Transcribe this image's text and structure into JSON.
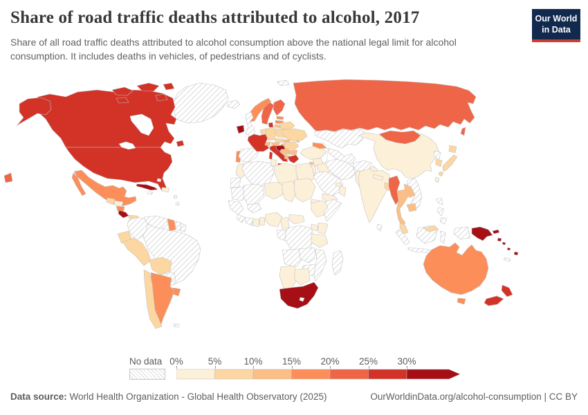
{
  "header": {
    "title": "Share of road traffic deaths attributed to alcohol, 2017",
    "subtitle": "Share of all road traffic deaths attributed to alcohol consumption above the national legal limit for alcohol consumption. It includes deaths in vehicles, of pedestrians and of cyclists.",
    "logo": {
      "line1": "Our World",
      "line2": "in Data",
      "bg_color": "#12294e",
      "bar_color": "#cf3c32"
    }
  },
  "legend": {
    "no_data_label": "No data",
    "tick_labels": [
      "0%",
      "5%",
      "10%",
      "15%",
      "20%",
      "25%",
      "30%"
    ],
    "hatch_line_color": "#dcdcdc",
    "border_color": "#c2c2c2"
  },
  "footer": {
    "source_label": "Data source:",
    "source_text": " World Health Organization - Global Health Observatory (2025)",
    "right_text": "OurWorldinData.org/alcohol-consumption | CC BY"
  },
  "chart_data": {
    "type": "choropleth",
    "title": "Share of road traffic deaths attributed to alcohol, 2017",
    "year": 2017,
    "unit": "% of road traffic deaths",
    "legend_position": "bottom",
    "bands": [
      {
        "key": "b0",
        "label": "0%-5%",
        "color": "#fdf0d9"
      },
      {
        "key": "b1",
        "label": "5%-10%",
        "color": "#fdd7a1"
      },
      {
        "key": "b2",
        "label": "10%-15%",
        "color": "#fcbe85"
      },
      {
        "key": "b3",
        "label": "15%-20%",
        "color": "#fc8e59"
      },
      {
        "key": "b4",
        "label": "20%-25%",
        "color": "#ee6547"
      },
      {
        "key": "b5",
        "label": "25%-30%",
        "color": "#d33227"
      },
      {
        "key": "b6",
        "label": ">30%",
        "color": "#a50f15"
      },
      {
        "key": "nodata",
        "label": "No data",
        "color": "hatch"
      }
    ],
    "countries": {
      "greenland": "nodata",
      "canada": "b5",
      "usa": "b5",
      "mexico": "b3",
      "cuba": "b6",
      "haiti_dr": "b0",
      "jamaica": "nodata",
      "bahamas": "nodata",
      "lesser_antilles": "nodata",
      "guatemala": "b1",
      "honduras": "b0",
      "nicaragua": "b3",
      "costa_rica": "b6",
      "panama": "b1",
      "colombia": "nodata",
      "venezuela": "nodata",
      "guyana": "b3",
      "suriname": "nodata",
      "french_guiana": "nodata",
      "ecuador": "b1",
      "peru": "b1",
      "brazil": "nodata",
      "bolivia": "b1",
      "paraguay": "nodata",
      "uruguay": "b3",
      "chile": "b1",
      "argentina": "b3",
      "falkland_islands": "nodata",
      "iceland": "nodata",
      "ireland": "b6",
      "uk": "nodata",
      "portugal": "b3",
      "spain": "nodata",
      "france": "b5",
      "benelux": "b1",
      "germany": "b1",
      "denmark": "b5",
      "norway": "b3",
      "sweden": "b4",
      "finland": "b4",
      "estonia": "b3",
      "latvia": "b3",
      "lithuania": "b2",
      "poland": "b1",
      "czechia": "b1",
      "slovakia": "b2",
      "hungary": "b2",
      "austria": "b2",
      "switzerland": "b2",
      "italy": "b5",
      "croatia": "b6",
      "serbia_bosnia": "b2",
      "albania_nmk": "b2",
      "greece": "b5",
      "bulgaria": "b2",
      "romania": "b1",
      "moldova": "b2",
      "ukraine": "b1",
      "belarus": "b1",
      "russia": "b4",
      "svalbard": "nodata",
      "kazakhstan": "nodata",
      "central_asia": "nodata",
      "turkey": "b0",
      "cyprus": "b2",
      "caucasus": "b3",
      "syria": "b0",
      "iraq": "b0",
      "jordan_israel": "b0",
      "saudi_arabia": "nodata",
      "yemen": "b0",
      "oman": "b0",
      "uae": "b0",
      "iran": "nodata",
      "afghanistan": "nodata",
      "pakistan": "b0",
      "india": "b0",
      "nepal": "b0",
      "bangladesh": "b1",
      "sri_lanka": "nodata",
      "china": "b0",
      "mongolia": "b4",
      "taiwan": "b0",
      "north_korea": "nodata",
      "south_korea": "b1",
      "japan": "b1",
      "myanmar": "b4",
      "thailand": "b2",
      "laos": "b2",
      "vietnam": "nodata",
      "cambodia": "b2",
      "malaysia": "b1",
      "indonesia": "nodata",
      "philippines": "nodata",
      "papua_new_guinea": "b6",
      "solomon_islands": "b6",
      "vanuatu": "b6",
      "fiji": "b6",
      "new_caledonia": "nodata",
      "australia": "b3",
      "new_zealand": "b5",
      "morocco": "b0",
      "western_sahara": "nodata",
      "mauritania": "nodata",
      "senegal_guinea": "nodata",
      "sierra_leone_liberia": "nodata",
      "mali": "nodata",
      "burkina_faso": "nodata",
      "ivory_coast": "nodata",
      "ghana": "b0",
      "togo_benin": "b0",
      "algeria": "nodata",
      "tunisia": "b0",
      "libya": "b0",
      "egypt": "b0",
      "niger": "b0",
      "chad": "b0",
      "sudan": "b0",
      "eritrea": "b0",
      "ethiopia": "b0",
      "somalia": "nodata",
      "nigeria": "b0",
      "cameroon": "b0",
      "central_african_republic": "b0",
      "gabon_congo": "nodata",
      "drc": "nodata",
      "uganda": "b0",
      "kenya": "b0",
      "tanzania": "b0",
      "angola": "nodata",
      "zambia": "nodata",
      "mozambique": "nodata",
      "zimbabwe": "nodata",
      "namibia": "b0",
      "botswana": "b0",
      "south_africa": "b6",
      "lesotho": "nodata",
      "madagascar": "nodata"
    }
  }
}
